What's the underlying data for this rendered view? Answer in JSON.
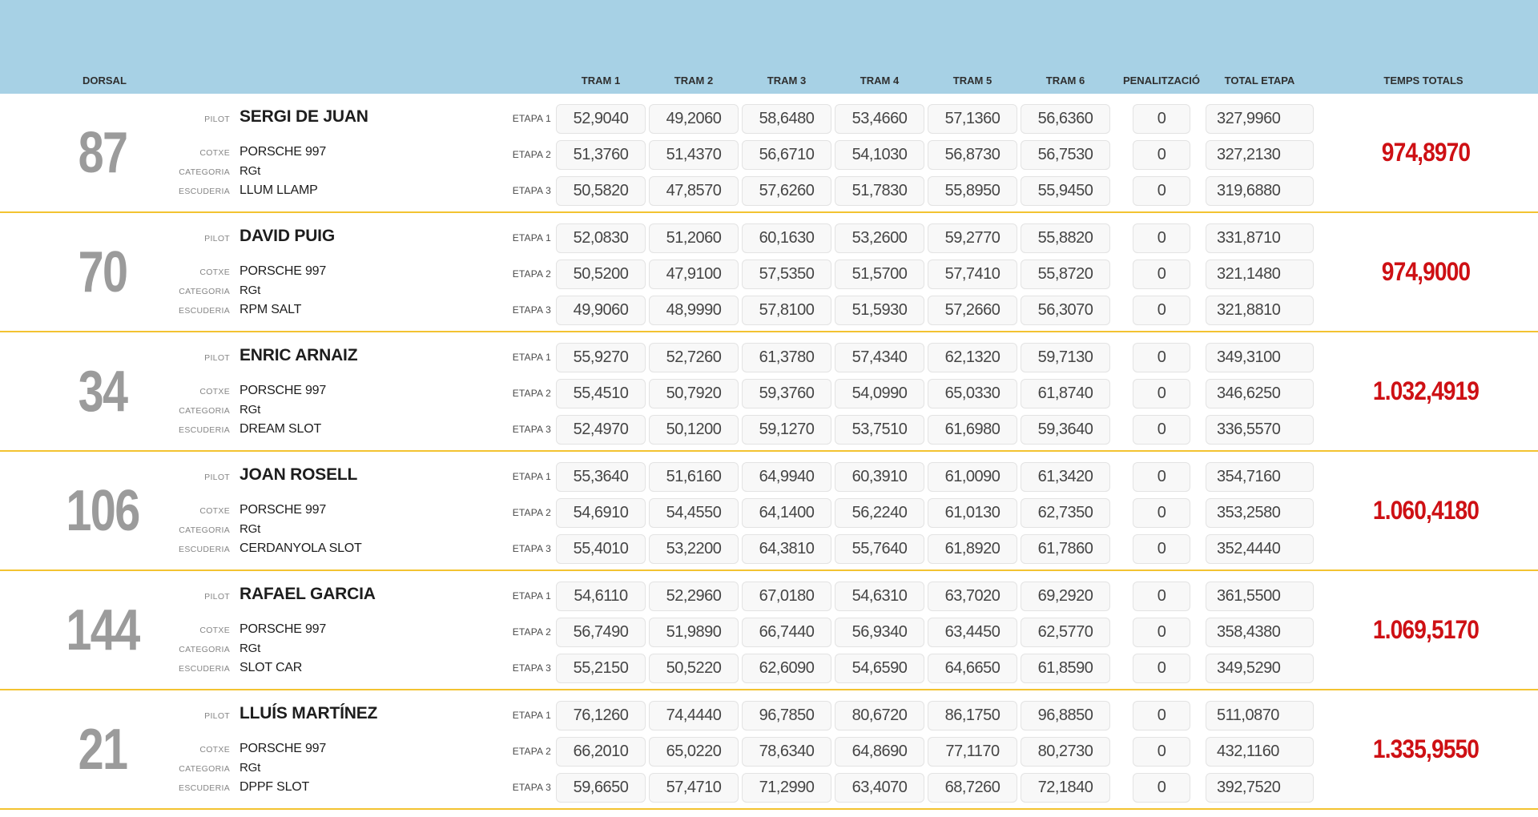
{
  "colors": {
    "header_band": "#a7d1e5",
    "row_divider": "#f3c331",
    "temps_totals_text": "#ce1014",
    "dorsal_text": "#9b9b9b",
    "time_box_bg": "#f8f8f8",
    "time_box_border": "#e3e3e3"
  },
  "header": {
    "dorsal_label": "DORSAL",
    "tram_labels": [
      "TRAM 1",
      "TRAM 2",
      "TRAM 3",
      "TRAM 4",
      "TRAM 5",
      "TRAM 6"
    ],
    "penalty_label": "PENALITZACIÓ",
    "total_etapa_label": "TOTAL ETAPA",
    "temps_totals_label": "TEMPS TOTALS"
  },
  "row_labels": {
    "pilot": "PILOT",
    "cotxe": "COTXE",
    "categoria": "CATEGORIA",
    "escuderia": "ESCUDERIA",
    "etapa": [
      "ETAPA 1",
      "ETAPA 2",
      "ETAPA 3"
    ]
  },
  "competitors": [
    {
      "dorsal": "87",
      "pilot": "SERGI DE JUAN",
      "cotxe": "PORSCHE 997",
      "categoria": "RGt",
      "escuderia": "LLUM LLAMP",
      "etapes": [
        {
          "trams": [
            "52,9040",
            "49,2060",
            "58,6480",
            "53,4660",
            "57,1360",
            "56,6360"
          ],
          "penalty": "0",
          "total": "327,9960"
        },
        {
          "trams": [
            "51,3760",
            "51,4370",
            "56,6710",
            "54,1030",
            "56,8730",
            "56,7530"
          ],
          "penalty": "0",
          "total": "327,2130"
        },
        {
          "trams": [
            "50,5820",
            "47,8570",
            "57,6260",
            "51,7830",
            "55,8950",
            "55,9450"
          ],
          "penalty": "0",
          "total": "319,6880"
        }
      ],
      "temps_totals": "974,8970"
    },
    {
      "dorsal": "70",
      "pilot": "DAVID PUIG",
      "cotxe": "PORSCHE 997",
      "categoria": "RGt",
      "escuderia": "RPM SALT",
      "etapes": [
        {
          "trams": [
            "52,0830",
            "51,2060",
            "60,1630",
            "53,2600",
            "59,2770",
            "55,8820"
          ],
          "penalty": "0",
          "total": "331,8710"
        },
        {
          "trams": [
            "50,5200",
            "47,9100",
            "57,5350",
            "51,5700",
            "57,7410",
            "55,8720"
          ],
          "penalty": "0",
          "total": "321,1480"
        },
        {
          "trams": [
            "49,9060",
            "48,9990",
            "57,8100",
            "51,5930",
            "57,2660",
            "56,3070"
          ],
          "penalty": "0",
          "total": "321,8810"
        }
      ],
      "temps_totals": "974,9000"
    },
    {
      "dorsal": "34",
      "pilot": "ENRIC ARNAIZ",
      "cotxe": "PORSCHE 997",
      "categoria": "RGt",
      "escuderia": "DREAM SLOT",
      "etapes": [
        {
          "trams": [
            "55,9270",
            "52,7260",
            "61,3780",
            "57,4340",
            "62,1320",
            "59,7130"
          ],
          "penalty": "0",
          "total": "349,3100"
        },
        {
          "trams": [
            "55,4510",
            "50,7920",
            "59,3760",
            "54,0990",
            "65,0330",
            "61,8740"
          ],
          "penalty": "0",
          "total": "346,6250"
        },
        {
          "trams": [
            "52,4970",
            "50,1200",
            "59,1270",
            "53,7510",
            "61,6980",
            "59,3640"
          ],
          "penalty": "0",
          "total": "336,5570"
        }
      ],
      "temps_totals": "1.032,4919"
    },
    {
      "dorsal": "106",
      "pilot": "JOAN ROSELL",
      "cotxe": "PORSCHE 997",
      "categoria": "RGt",
      "escuderia": "CERDANYOLA SLOT",
      "etapes": [
        {
          "trams": [
            "55,3640",
            "51,6160",
            "64,9940",
            "60,3910",
            "61,0090",
            "61,3420"
          ],
          "penalty": "0",
          "total": "354,7160"
        },
        {
          "trams": [
            "54,6910",
            "54,4550",
            "64,1400",
            "56,2240",
            "61,0130",
            "62,7350"
          ],
          "penalty": "0",
          "total": "353,2580"
        },
        {
          "trams": [
            "55,4010",
            "53,2200",
            "64,3810",
            "55,7640",
            "61,8920",
            "61,7860"
          ],
          "penalty": "0",
          "total": "352,4440"
        }
      ],
      "temps_totals": "1.060,4180"
    },
    {
      "dorsal": "144",
      "pilot": "RAFAEL GARCIA",
      "cotxe": "PORSCHE 997",
      "categoria": "RGt",
      "escuderia": "SLOT CAR",
      "etapes": [
        {
          "trams": [
            "54,6110",
            "52,2960",
            "67,0180",
            "54,6310",
            "63,7020",
            "69,2920"
          ],
          "penalty": "0",
          "total": "361,5500"
        },
        {
          "trams": [
            "56,7490",
            "51,9890",
            "66,7440",
            "56,9340",
            "63,4450",
            "62,5770"
          ],
          "penalty": "0",
          "total": "358,4380"
        },
        {
          "trams": [
            "55,2150",
            "50,5220",
            "62,6090",
            "54,6590",
            "64,6650",
            "61,8590"
          ],
          "penalty": "0",
          "total": "349,5290"
        }
      ],
      "temps_totals": "1.069,5170"
    },
    {
      "dorsal": "21",
      "pilot": "LLUÍS MARTÍNEZ",
      "cotxe": "PORSCHE 997",
      "categoria": "RGt",
      "escuderia": "DPPF SLOT",
      "etapes": [
        {
          "trams": [
            "76,1260",
            "74,4440",
            "96,7850",
            "80,6720",
            "86,1750",
            "96,8850"
          ],
          "penalty": "0",
          "total": "511,0870"
        },
        {
          "trams": [
            "66,2010",
            "65,0220",
            "78,6340",
            "64,8690",
            "77,1170",
            "80,2730"
          ],
          "penalty": "0",
          "total": "432,1160"
        },
        {
          "trams": [
            "59,6650",
            "57,4710",
            "71,2990",
            "63,4070",
            "68,7260",
            "72,1840"
          ],
          "penalty": "0",
          "total": "392,7520"
        }
      ],
      "temps_totals": "1.335,9550"
    }
  ]
}
